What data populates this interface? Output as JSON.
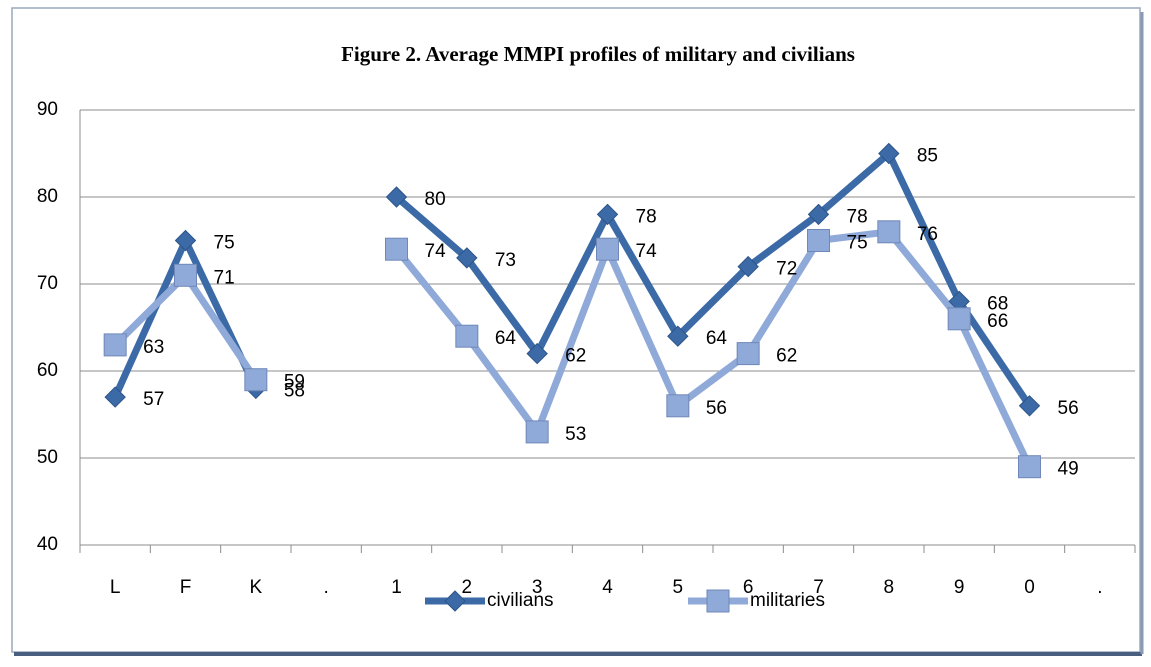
{
  "chart_data": {
    "type": "line",
    "title": "Figure 2. Average  MMPI profiles of military and civilians",
    "categories": [
      "L",
      "F",
      "K",
      ".",
      "1",
      "2",
      "3",
      "4",
      "5",
      "6",
      "7",
      "8",
      "9",
      "0",
      "."
    ],
    "series": [
      {
        "name": "civilians",
        "color": "#3b6aa7",
        "marker": "diamond",
        "values": [
          57,
          75,
          58,
          null,
          80,
          73,
          62,
          78,
          64,
          72,
          78,
          85,
          68,
          56,
          null
        ]
      },
      {
        "name": "militaries",
        "color": "#8fa9d8",
        "marker": "square",
        "values": [
          63,
          71,
          59,
          null,
          74,
          64,
          53,
          74,
          56,
          62,
          75,
          76,
          66,
          49,
          null
        ]
      }
    ],
    "ylim": [
      40,
      90
    ],
    "yticks": [
      40,
      50,
      60,
      70,
      80,
      90
    ],
    "grid": true,
    "legend": "bottom"
  }
}
